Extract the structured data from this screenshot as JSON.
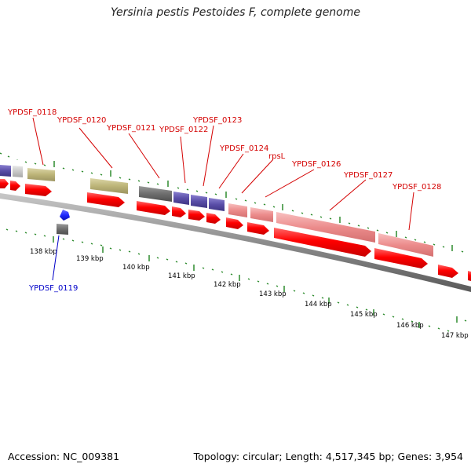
{
  "title": "Yersinia pestis Pestoides F, complete genome",
  "footer": {
    "accession": "Accession: NC_009381",
    "summary": "Topology: circular; Length: 4,517,345 bp; Genes: 3,954"
  },
  "scale_labels": [
    "138 kbp",
    "139 kbp",
    "140 kbp",
    "141 kbp",
    "142 kbp",
    "143 kbp",
    "144 kbp",
    "145 kbp",
    "146 kbp",
    "147 kbp"
  ],
  "gene_labels": {
    "ypdsf_0118": "YPDSF_0118",
    "ypdsf_0119": "YPDSF_0119",
    "ypdsf_0120": "YPDSF_0120",
    "ypdsf_0121": "YPDSF_0121",
    "ypdsf_0122": "YPDSF_0122",
    "ypdsf_0123": "YPDSF_0123",
    "ypdsf_0124": "YPDSF_0124",
    "rpsl": "rpsL",
    "ypdsf_0126": "YPDSF_0126",
    "ypdsf_0127": "YPDSF_0127",
    "ypdsf_0128": "YPDSF_0128"
  },
  "colors": {
    "cds": "#ff0000",
    "rna_pink": "#ec8c8c",
    "cog_olive": "#bcb478",
    "cog_purple": "#5a4ea8",
    "cog_gray": "#6e6e6e",
    "cog_light_gray": "#c8c8c8",
    "cog_blue": "#1e28ff",
    "backbone": "#8c8c8c",
    "tick": "#2e8b2e",
    "label_red": "#d40000",
    "label_blue": "#0000c8"
  }
}
